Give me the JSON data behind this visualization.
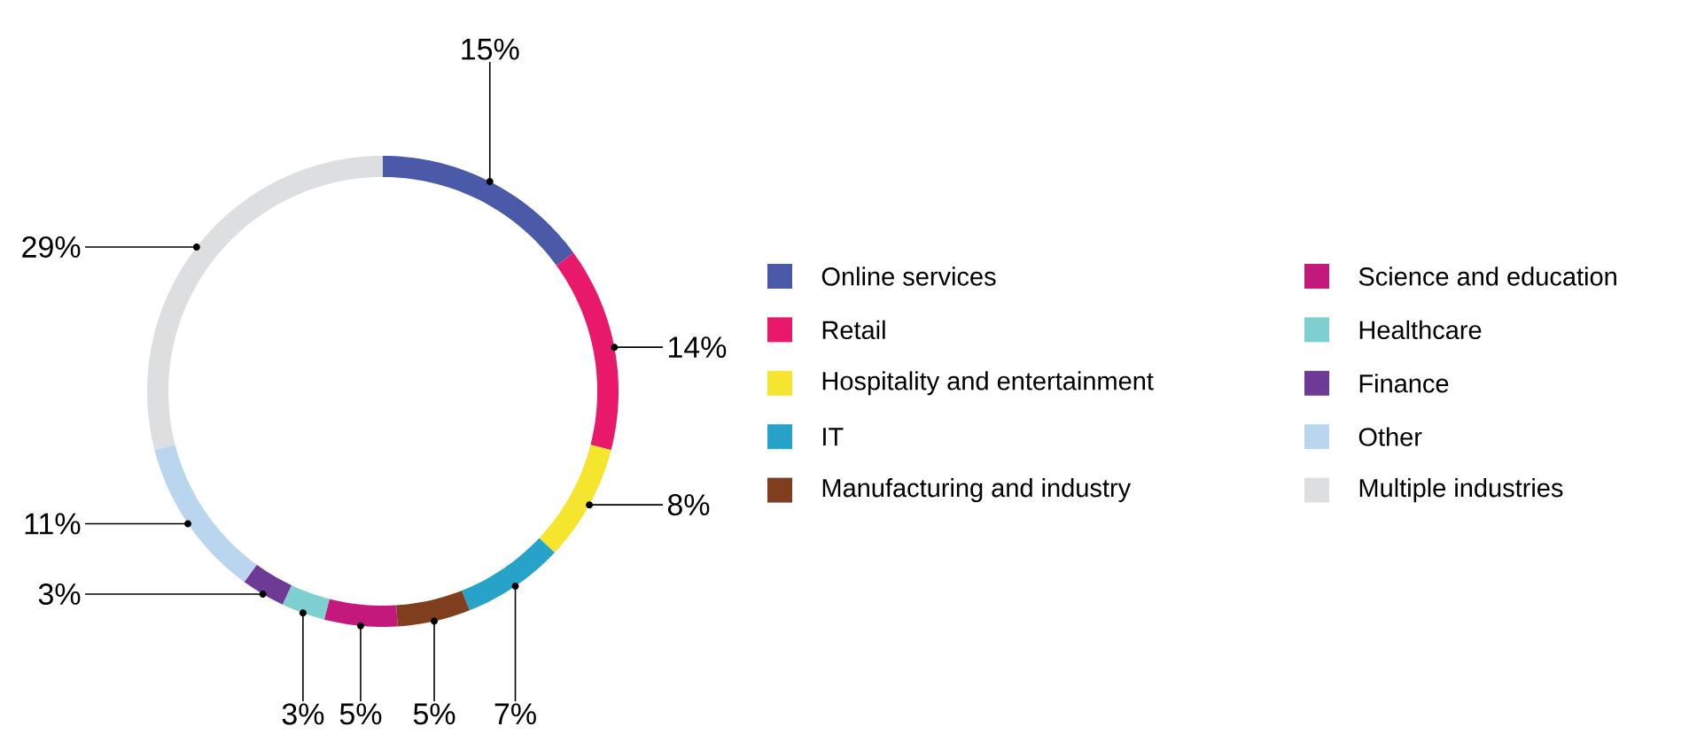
{
  "chart_data": {
    "type": "donut",
    "categories": [
      "Online services",
      "Retail",
      "Hospitality and entertainment",
      "IT",
      "Manufacturing and industry",
      "Science and education",
      "Healthcare",
      "Finance",
      "Other",
      "Multiple industries"
    ],
    "values": [
      15,
      14,
      8,
      7,
      5,
      5,
      3,
      3,
      11,
      29
    ],
    "value_labels": [
      "15%",
      "14%",
      "8%",
      "7%",
      "5%",
      "5%",
      "3%",
      "3%",
      "11%",
      "29%"
    ],
    "colors": [
      "#4a5aa8",
      "#e8196b",
      "#f5e52e",
      "#27a2c8",
      "#7f3f1e",
      "#c3187c",
      "#7ecfcf",
      "#6d3b96",
      "#b9d6ee",
      "#dcdedf"
    ],
    "legend": "right"
  }
}
